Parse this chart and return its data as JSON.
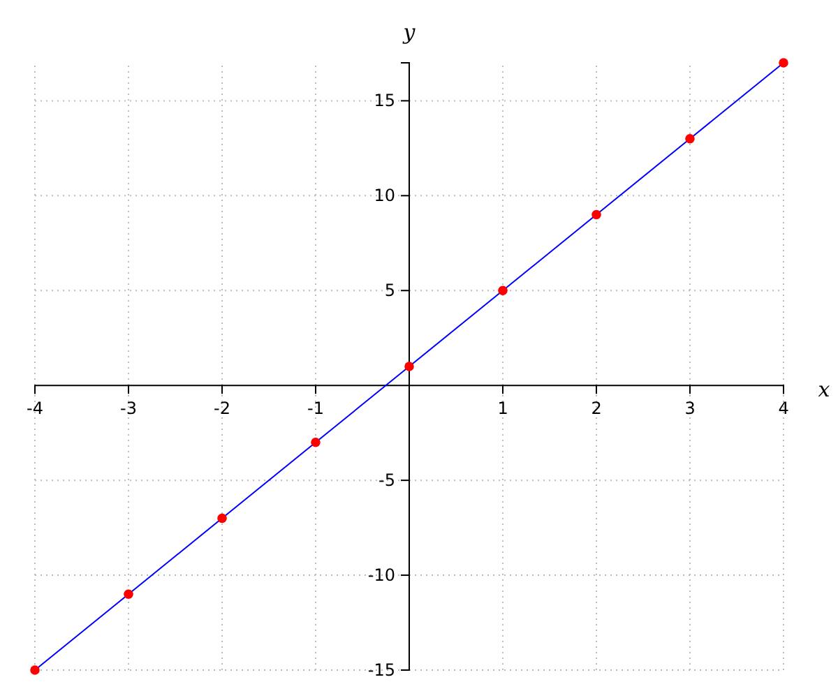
{
  "chart_data": {
    "type": "line",
    "xlabel": "x",
    "ylabel": "y",
    "x": [
      -4,
      -3,
      -2,
      -1,
      0,
      1,
      2,
      3,
      4
    ],
    "series": [
      {
        "color": "#0000ff",
        "marker": "none",
        "values": [
          -15,
          -11,
          -7,
          -3,
          1,
          5,
          9,
          13,
          17
        ]
      },
      {
        "type": "scatter",
        "color": "#ff0000",
        "marker": "circle",
        "values": [
          -15,
          -11,
          -7,
          -3,
          1,
          5,
          9,
          13,
          17
        ]
      }
    ],
    "xlim": [
      -4,
      4
    ],
    "xticks": [
      -4,
      -3,
      -2,
      -1,
      1,
      2,
      3,
      4
    ],
    "ylim": [
      -15,
      17
    ],
    "yticks": [
      -15,
      -10,
      -5,
      5,
      10,
      15
    ],
    "grid": true
  }
}
